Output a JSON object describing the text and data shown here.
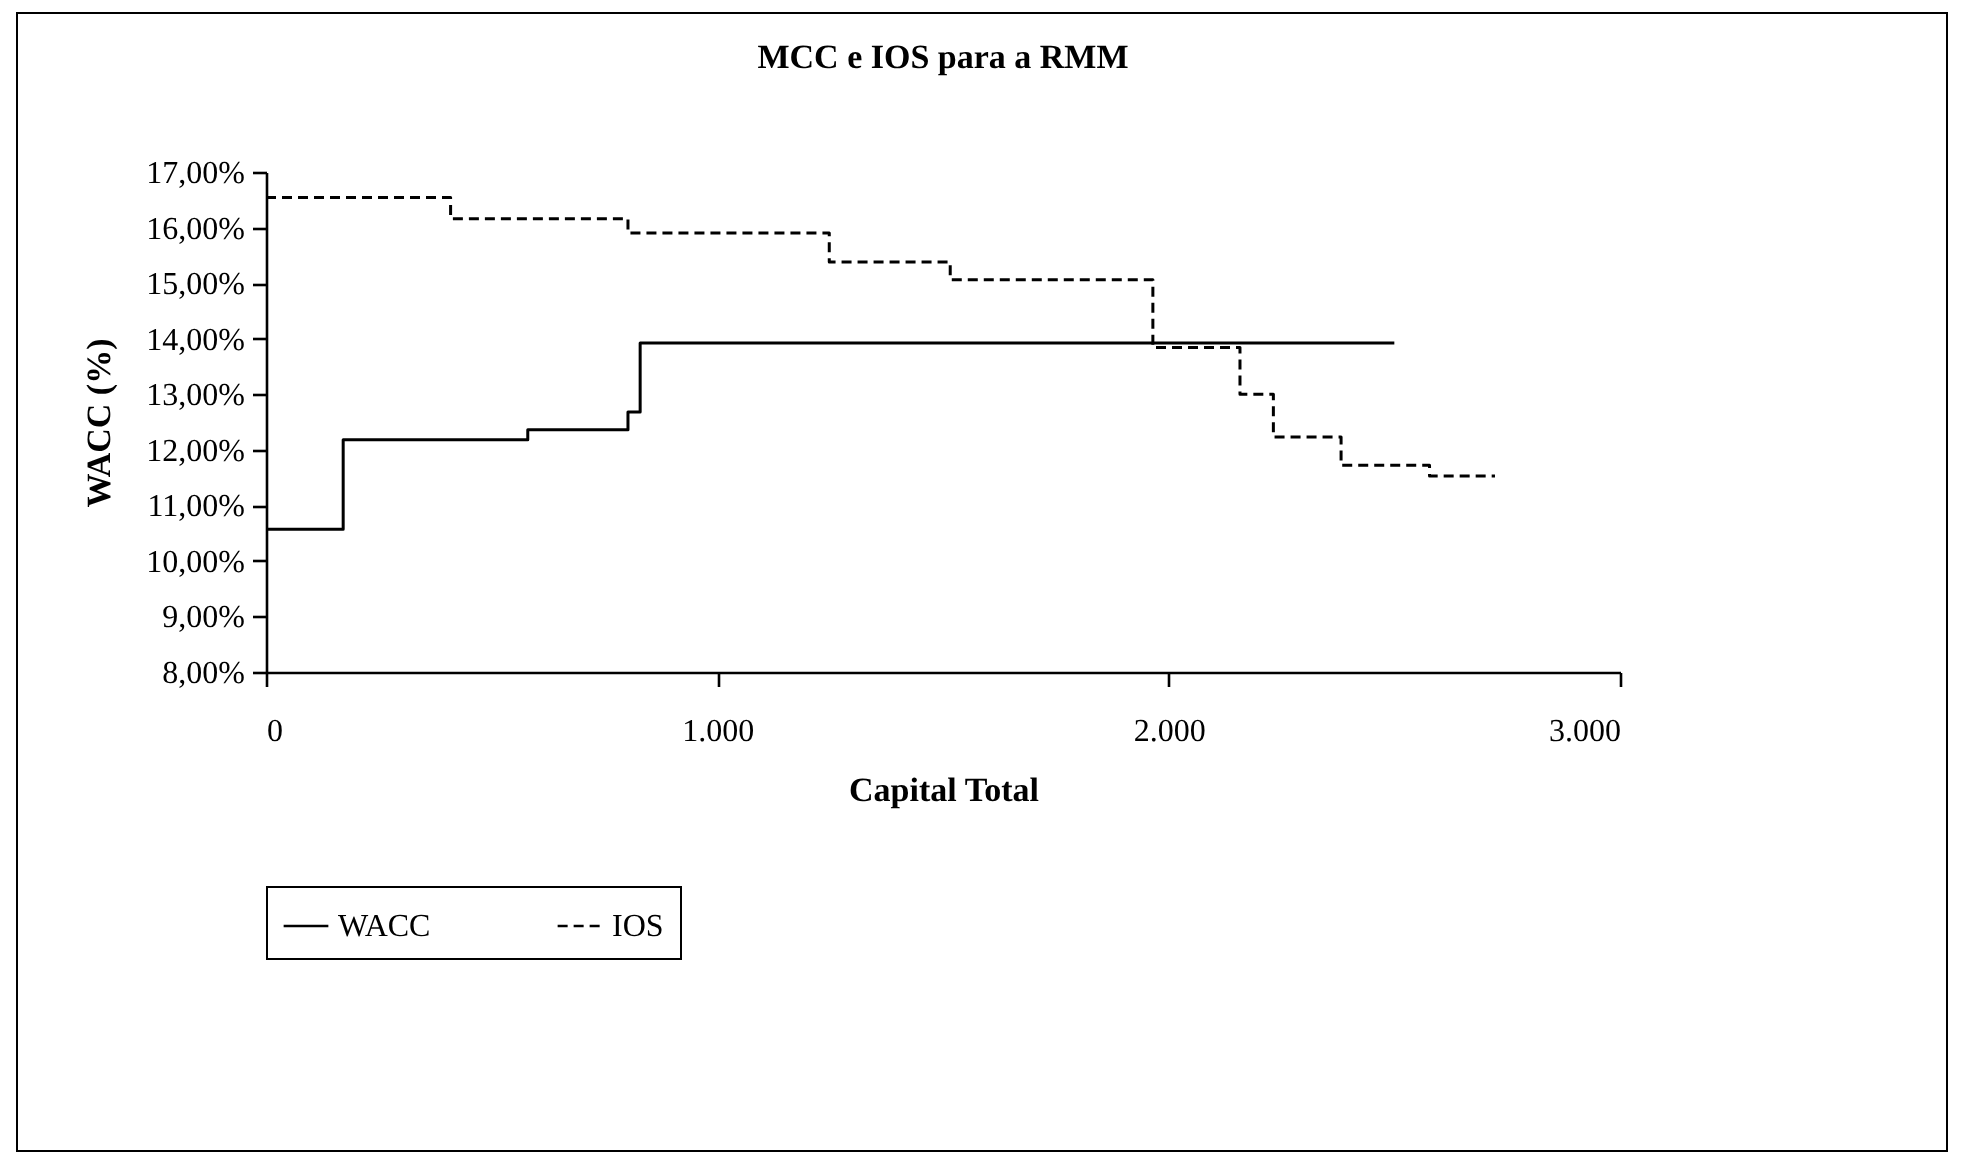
{
  "chart_data": {
    "type": "step",
    "title": "MCC e IOS para a RMM",
    "xlabel": "Capital Total",
    "ylabel": "WACC (%)",
    "xlim": [
      0,
      3000
    ],
    "xticks": [
      {
        "value": 0,
        "label": "0"
      },
      {
        "value": 1000,
        "label": "1.000"
      },
      {
        "value": 2000,
        "label": "2.000"
      },
      {
        "value": 3000,
        "label": "3.000"
      }
    ],
    "ylim": [
      8,
      17
    ],
    "yticks": [
      {
        "value": 8,
        "label": "8,00%"
      },
      {
        "value": 9,
        "label": "9,00%"
      },
      {
        "value": 10,
        "label": "10,00%"
      },
      {
        "value": 11,
        "label": "11,00%"
      },
      {
        "value": 12,
        "label": "12,00%"
      },
      {
        "value": 13,
        "label": "13,00%"
      },
      {
        "value": 14,
        "label": "14,00%"
      },
      {
        "value": 15,
        "label": "15,00%"
      },
      {
        "value": 16,
        "label": "16,00%"
      },
      {
        "value": 17,
        "label": "17,00%"
      }
    ],
    "grid": false,
    "legend": "bottom",
    "marker": "none",
    "series": [
      {
        "name": "WACC",
        "color": "#000000",
        "line_style": "solid",
        "x": [
          0,
          171,
          580,
          802,
          829,
          2500
        ],
        "values": [
          10.57,
          12.18,
          12.36,
          12.68,
          13.92,
          13.92
        ]
      },
      {
        "name": "IOS",
        "color": "#000000",
        "line_style": "dashed",
        "x": [
          0,
          409,
          802,
          1248,
          1516,
          1965,
          2158,
          2232,
          2382,
          2578,
          2723
        ],
        "values": [
          16.54,
          16.16,
          15.9,
          15.38,
          15.06,
          13.84,
          13.0,
          12.23,
          11.72,
          11.53,
          11.53
        ]
      }
    ]
  }
}
